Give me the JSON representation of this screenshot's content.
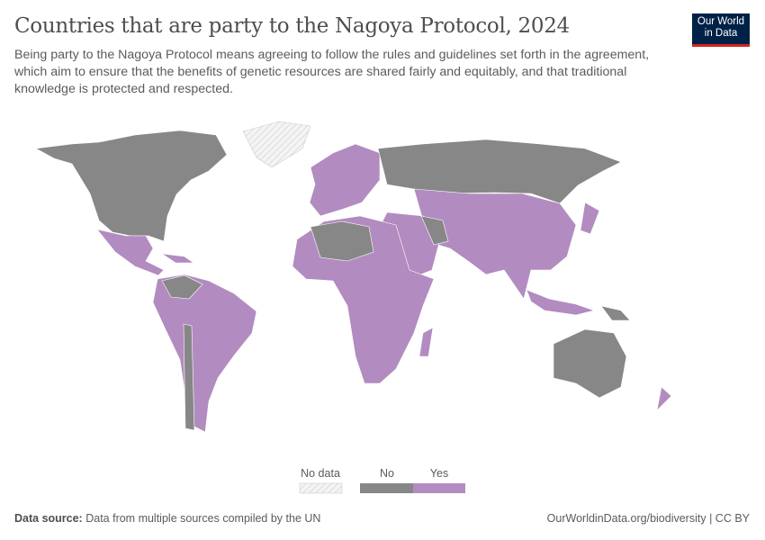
{
  "title": "Countries that are party to the Nagoya Protocol, 2024",
  "subtitle": "Being party to the Nagoya Protocol means agreeing to follow the rules and guidelines set forth in the agreement, which aim to ensure that the benefits of genetic resources are shared fairly and equitably, and that traditional knowledge is protected and respected.",
  "logo": "Our World in Data",
  "legend": {
    "items": [
      {
        "label": "No data",
        "color": "hatched"
      },
      {
        "label": "No",
        "color": "#878787"
      },
      {
        "label": "Yes",
        "color": "#b28bc0"
      }
    ]
  },
  "footer": {
    "source_label": "Data source:",
    "source_text": "Data from multiple sources compiled by the UN",
    "url": "OurWorldinData.org/biodiversity | CC BY"
  },
  "colors": {
    "no": "#878787",
    "yes": "#b28bc0",
    "border": "#ffffff"
  }
}
